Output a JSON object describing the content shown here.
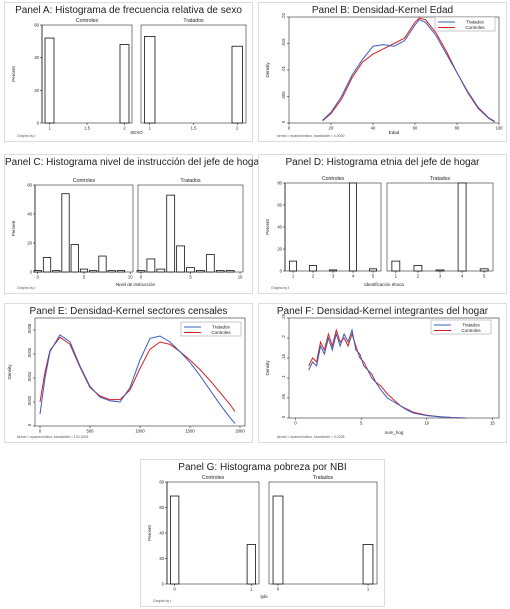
{
  "colors": {
    "tratados": "#3a5bbf",
    "controles": "#d42020",
    "bars": "#111111"
  },
  "chart_data": [
    {
      "id": "A",
      "type": "bar",
      "title": "Panel A: Histograma de frecuencia relativa de sexo",
      "facets": [
        "Controles",
        "Tratados"
      ],
      "ylabel": "Percent",
      "xlabel": "SEXO",
      "ylim": [
        0,
        60
      ],
      "yticks": [
        0,
        20,
        40,
        60
      ],
      "xlim": [
        0.9,
        2.1
      ],
      "xticks": [
        1,
        1.5,
        2
      ],
      "xtick_labels": [
        "1",
        "1.5",
        "2"
      ],
      "bar_width": 0.12,
      "series": [
        {
          "name": "Controles",
          "x": [
            1,
            2
          ],
          "values": [
            52,
            48
          ]
        },
        {
          "name": "Tratados",
          "x": [
            1,
            2
          ],
          "values": [
            53,
            47
          ]
        }
      ],
      "footnote": "Graphs by t"
    },
    {
      "id": "B",
      "type": "line",
      "title": "Panel B: Densidad-Kernel Edad",
      "ylabel": "Density",
      "xlabel": "Edad",
      "xlim": [
        0,
        100
      ],
      "ylim": [
        0,
        0.02
      ],
      "xticks": [
        0,
        20,
        40,
        60,
        80,
        100
      ],
      "yticks": [
        0,
        0.005,
        0.01,
        0.015,
        0.02
      ],
      "ytick_labels": [
        "0",
        ".005",
        ".01",
        ".015",
        ".02"
      ],
      "legend": [
        "Tratados",
        "Controles"
      ],
      "legend_position": "top-right",
      "series": [
        {
          "name": "Tratados",
          "x": [
            16,
            20,
            25,
            30,
            35,
            40,
            45,
            50,
            55,
            60,
            62,
            65,
            70,
            75,
            80,
            85,
            90,
            95,
            98
          ],
          "values": [
            0.0005,
            0.002,
            0.005,
            0.009,
            0.012,
            0.0145,
            0.0148,
            0.0145,
            0.0155,
            0.0185,
            0.0195,
            0.019,
            0.0165,
            0.013,
            0.0095,
            0.006,
            0.003,
            0.001,
            0.0003
          ]
        },
        {
          "name": "Controles",
          "x": [
            16,
            20,
            25,
            30,
            35,
            40,
            45,
            50,
            55,
            60,
            62,
            65,
            70,
            75,
            80,
            85,
            90,
            95,
            98
          ],
          "values": [
            0.0004,
            0.0018,
            0.0045,
            0.0085,
            0.0115,
            0.013,
            0.014,
            0.015,
            0.016,
            0.019,
            0.0198,
            0.0195,
            0.017,
            0.0135,
            0.0095,
            0.0058,
            0.0028,
            0.0009,
            0.0002
          ]
        }
      ],
      "footnote": "kernel = epanechnikov, bandwidth = 4.3000"
    },
    {
      "id": "C",
      "type": "bar",
      "title": "Panel C: Histograma nivel de instrucción del jefe de hogar",
      "facets": [
        "Controles",
        "Tratados"
      ],
      "ylabel": "Percent",
      "xlabel": "Nivel de instrucción",
      "ylim": [
        0,
        60
      ],
      "yticks": [
        0,
        20,
        40,
        60
      ],
      "xlim": [
        -0.3,
        10.3
      ],
      "xticks": [
        0,
        5,
        10
      ],
      "xtick_labels": [
        "0",
        "5",
        "10"
      ],
      "bar_width": 0.8,
      "series": [
        {
          "name": "Controles",
          "x": [
            0,
            1,
            2,
            3,
            4,
            5,
            6,
            7,
            8,
            9,
            10
          ],
          "values": [
            1,
            10,
            1,
            54,
            19,
            2,
            1,
            11,
            1,
            1,
            0
          ]
        },
        {
          "name": "Tratados",
          "x": [
            0,
            1,
            2,
            3,
            4,
            5,
            6,
            7,
            8,
            9,
            10
          ],
          "values": [
            1,
            9,
            2,
            53,
            18,
            3,
            1,
            12,
            1,
            1,
            0
          ]
        }
      ],
      "footnote": "Graphs by t"
    },
    {
      "id": "D",
      "type": "bar",
      "title": "Panel D: Histograma etnia del jefe de hogar",
      "facets": [
        "Controles",
        "Tratados"
      ],
      "ylabel": "Percent",
      "xlabel": "Identificación étnica",
      "ylim": [
        0,
        80
      ],
      "yticks": [
        0,
        20,
        40,
        60,
        80
      ],
      "xlim": [
        0.6,
        5.4
      ],
      "xticks": [
        1,
        2,
        3,
        4,
        5
      ],
      "xtick_labels": [
        "1",
        "2",
        "3",
        "4",
        "5"
      ],
      "bar_width": 0.36,
      "series": [
        {
          "name": "Controles",
          "x": [
            1,
            2,
            3,
            4,
            5
          ],
          "values": [
            9,
            5,
            1,
            80,
            2
          ]
        },
        {
          "name": "Tratados",
          "x": [
            1,
            2,
            3,
            4,
            5
          ],
          "values": [
            9,
            5,
            1,
            80,
            2
          ]
        }
      ],
      "footnote": "Graphs by t"
    },
    {
      "id": "E",
      "type": "line",
      "title": "Panel E: Densidad-Kernel sectores censales",
      "ylabel": "Density",
      "xlabel": "",
      "xlim": [
        -50,
        2050
      ],
      "ylim": [
        0,
        0.0009
      ],
      "xticks": [
        0,
        500,
        1000,
        1500,
        2000
      ],
      "yticks": [
        0,
        0.0002,
        0.0004,
        0.0006,
        0.0008
      ],
      "ytick_labels": [
        "0",
        ".0002",
        ".0004",
        ".0006",
        ".0008"
      ],
      "legend": [
        "Tratados",
        "Controles"
      ],
      "legend_position": "top-right",
      "series": [
        {
          "name": "Tratados",
          "x": [
            0,
            50,
            100,
            200,
            300,
            400,
            500,
            600,
            700,
            800,
            900,
            1000,
            1100,
            1200,
            1300,
            1400,
            1500,
            1600,
            1700,
            1800,
            1900,
            1950
          ],
          "values": [
            0.0001,
            0.0004,
            0.00062,
            0.00076,
            0.0007,
            0.0005,
            0.00033,
            0.00024,
            0.00021,
            0.0002,
            0.00032,
            0.00055,
            0.00073,
            0.00075,
            0.0007,
            0.00062,
            0.00053,
            0.00042,
            0.0003,
            0.00018,
            7e-05,
            2e-05
          ]
        },
        {
          "name": "Controles",
          "x": [
            0,
            50,
            100,
            200,
            300,
            400,
            500,
            600,
            700,
            800,
            900,
            1000,
            1100,
            1200,
            1300,
            1400,
            1500,
            1600,
            1700,
            1800,
            1900,
            1950
          ],
          "values": [
            0.0002,
            0.00045,
            0.00063,
            0.00074,
            0.00068,
            0.00049,
            0.00032,
            0.00025,
            0.00022,
            0.00022,
            0.0003,
            0.00048,
            0.00064,
            0.0007,
            0.00068,
            0.00062,
            0.00055,
            0.00047,
            0.00038,
            0.00028,
            0.00018,
            0.00012
          ]
        }
      ],
      "footnote": "kernel = epanechnikov, bandwidth = 120.1603"
    },
    {
      "id": "F",
      "type": "line",
      "title": "Panel F: Densidad-Kernel integrantes del hogar",
      "ylabel": "Density",
      "xlabel": "num_hog",
      "xlim": [
        -0.5,
        15.5
      ],
      "ylim": [
        0,
        0.25
      ],
      "xticks": [
        0,
        5,
        10,
        15
      ],
      "yticks": [
        0,
        0.05,
        0.1,
        0.15,
        0.2,
        0.25
      ],
      "ytick_labels": [
        "0",
        ".05",
        ".1",
        ".15",
        ".2",
        ".25"
      ],
      "legend": [
        "Tratados",
        "Controles"
      ],
      "legend_position": "top-right",
      "series": [
        {
          "name": "Tratados",
          "x": [
            1,
            1.3,
            1.6,
            1.9,
            2.2,
            2.5,
            2.8,
            3.1,
            3.4,
            3.7,
            4,
            4.3,
            4.6,
            4.9,
            5.2,
            5.5,
            5.8,
            6.1,
            6.5,
            7,
            7.5,
            8,
            8.5,
            9,
            10,
            11,
            12,
            13
          ],
          "values": [
            0.12,
            0.14,
            0.13,
            0.18,
            0.16,
            0.2,
            0.17,
            0.21,
            0.18,
            0.21,
            0.19,
            0.22,
            0.17,
            0.16,
            0.13,
            0.12,
            0.1,
            0.09,
            0.07,
            0.05,
            0.04,
            0.03,
            0.02,
            0.012,
            0.006,
            0.003,
            0.001,
            0
          ]
        },
        {
          "name": "Controles",
          "x": [
            1,
            1.3,
            1.6,
            1.9,
            2.2,
            2.5,
            2.8,
            3.1,
            3.4,
            3.7,
            4,
            4.3,
            4.6,
            4.9,
            5.2,
            5.5,
            5.8,
            6.1,
            6.5,
            7,
            7.5,
            8,
            8.5,
            9,
            10,
            11,
            12,
            13
          ],
          "values": [
            0.13,
            0.15,
            0.14,
            0.19,
            0.17,
            0.21,
            0.18,
            0.22,
            0.19,
            0.2,
            0.18,
            0.21,
            0.18,
            0.15,
            0.14,
            0.12,
            0.11,
            0.09,
            0.08,
            0.06,
            0.045,
            0.03,
            0.022,
            0.014,
            0.007,
            0.003,
            0.001,
            0
          ]
        }
      ],
      "footnote": "kernel = epanechnikov, bandwidth = 0.2225"
    },
    {
      "id": "G",
      "type": "bar",
      "title": "Panel G: Histograma pobreza por NBI",
      "facets": [
        "Controles",
        "Tratados"
      ],
      "ylabel": "Percent",
      "xlabel": "ipbi",
      "ylim": [
        0,
        80
      ],
      "yticks": [
        0,
        20,
        40,
        60,
        80
      ],
      "xlim": [
        -0.1,
        1.1
      ],
      "xticks": [
        0,
        1
      ],
      "xtick_labels": [
        "0",
        "1"
      ],
      "bar_width": 0.11,
      "series": [
        {
          "name": "Controles",
          "x": [
            0,
            1
          ],
          "values": [
            69,
            31
          ]
        },
        {
          "name": "Tratados",
          "x": [
            0,
            1
          ],
          "values": [
            69,
            31
          ]
        }
      ],
      "footnote": "Graphs by t"
    }
  ]
}
